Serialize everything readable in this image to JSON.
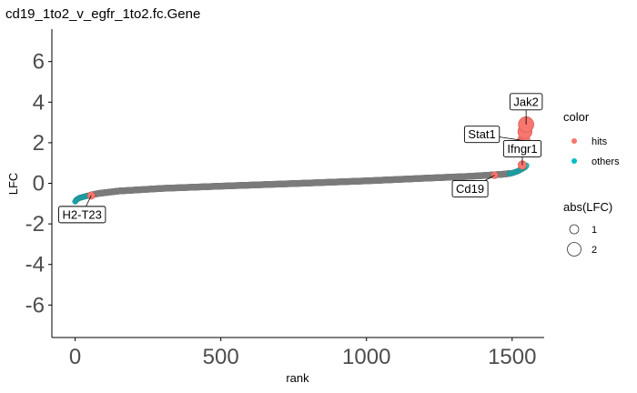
{
  "chart_data": {
    "type": "scatter",
    "title": "cd19_1to2_v_egfr_1to2.fc.Gene",
    "xlabel": "rank",
    "ylabel": "LFC",
    "xlim": [
      -80,
      1610
    ],
    "ylim": [
      -7.6,
      7.6
    ],
    "xticks": [
      0,
      500,
      1000,
      1500
    ],
    "yticks": [
      -6,
      -4,
      -2,
      0,
      2,
      4,
      6
    ],
    "grid": false,
    "n_genes": 1550,
    "colors": {
      "hits": "#F8766D",
      "others": "#00BFC4",
      "bulk": "#808080"
    },
    "series": [
      {
        "name": "hits",
        "points": [
          {
            "x": 55,
            "y": -0.6,
            "label": "H2-T23"
          },
          {
            "x": 1440,
            "y": 0.4,
            "label": "Cd19"
          },
          {
            "x": 1535,
            "y": 0.9,
            "label": "Ifngr1"
          },
          {
            "x": 1540,
            "y": 2.1,
            "label": "Stat1"
          },
          {
            "x": 1544,
            "y": 2.55,
            "label": ""
          },
          {
            "x": 1548,
            "y": 2.9,
            "label": "Jak2"
          }
        ]
      },
      {
        "name": "others",
        "curve": [
          [
            0,
            -0.9
          ],
          [
            5,
            -0.8
          ],
          [
            15,
            -0.72
          ],
          [
            40,
            -0.62
          ],
          [
            80,
            -0.5
          ],
          [
            150,
            -0.38
          ],
          [
            300,
            -0.25
          ],
          [
            500,
            -0.14
          ],
          [
            775,
            0.0
          ],
          [
            1000,
            0.12
          ],
          [
            1200,
            0.25
          ],
          [
            1350,
            0.34
          ],
          [
            1420,
            0.4
          ],
          [
            1470,
            0.45
          ],
          [
            1500,
            0.5
          ],
          [
            1520,
            0.6
          ],
          [
            1535,
            0.72
          ],
          [
            1545,
            0.8
          ],
          [
            1550,
            0.9
          ]
        ]
      }
    ],
    "legend": {
      "placement": "right",
      "color_title": "color",
      "color_items": [
        "hits",
        "others"
      ],
      "size_title": "abs(LFC)",
      "size_items": [
        "1",
        "2"
      ]
    }
  }
}
